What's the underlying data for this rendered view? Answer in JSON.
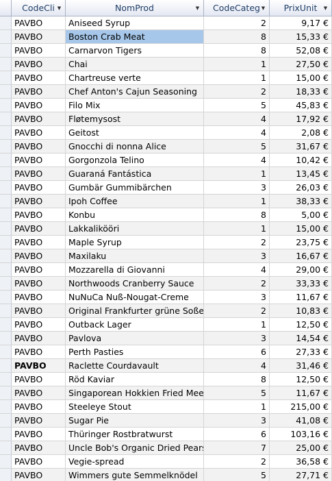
{
  "columns": [
    "CodeCli",
    "NomProd",
    "CodeCateg",
    "PrixUnit"
  ],
  "dropdown_icon": "chevron-down-icon",
  "selected_row_index": 1,
  "rows": [
    {
      "codecli": "PAVBO",
      "nomprod": "Aniseed Syrup",
      "codecateg": "2",
      "prixunit": "9,17 €"
    },
    {
      "codecli": "PAVBO",
      "nomprod": "Boston Crab Meat",
      "codecateg": "8",
      "prixunit": "15,33 €"
    },
    {
      "codecli": "PAVBO",
      "nomprod": "Carnarvon Tigers",
      "codecateg": "8",
      "prixunit": "52,08 €"
    },
    {
      "codecli": "PAVBO",
      "nomprod": "Chai",
      "codecateg": "1",
      "prixunit": "27,50 €"
    },
    {
      "codecli": "PAVBO",
      "nomprod": "Chartreuse verte",
      "codecateg": "1",
      "prixunit": "15,00 €"
    },
    {
      "codecli": "PAVBO",
      "nomprod": "Chef Anton's Cajun Seasoning",
      "codecateg": "2",
      "prixunit": "18,33 €"
    },
    {
      "codecli": "PAVBO",
      "nomprod": "Filo Mix",
      "codecateg": "5",
      "prixunit": "45,83 €"
    },
    {
      "codecli": "PAVBO",
      "nomprod": "Fløtemysost",
      "codecateg": "4",
      "prixunit": "17,92 €"
    },
    {
      "codecli": "PAVBO",
      "nomprod": "Geitost",
      "codecateg": "4",
      "prixunit": "2,08 €"
    },
    {
      "codecli": "PAVBO",
      "nomprod": "Gnocchi di nonna Alice",
      "codecateg": "5",
      "prixunit": "31,67 €"
    },
    {
      "codecli": "PAVBO",
      "nomprod": "Gorgonzola Telino",
      "codecateg": "4",
      "prixunit": "10,42 €"
    },
    {
      "codecli": "PAVBO",
      "nomprod": "Guaraná Fantástica",
      "codecateg": "1",
      "prixunit": "13,45 €"
    },
    {
      "codecli": "PAVBO",
      "nomprod": "Gumbär Gummibärchen",
      "codecateg": "3",
      "prixunit": "26,03 €"
    },
    {
      "codecli": "PAVBO",
      "nomprod": "Ipoh Coffee",
      "codecateg": "1",
      "prixunit": "38,33 €"
    },
    {
      "codecli": "PAVBO",
      "nomprod": "Konbu",
      "codecateg": "8",
      "prixunit": "5,00 €"
    },
    {
      "codecli": "PAVBO",
      "nomprod": "Lakkalikööri",
      "codecateg": "1",
      "prixunit": "15,00 €"
    },
    {
      "codecli": "PAVBO",
      "nomprod": "Maple Syrup",
      "codecateg": "2",
      "prixunit": "23,75 €"
    },
    {
      "codecli": "PAVBO",
      "nomprod": "Maxilaku",
      "codecateg": "3",
      "prixunit": "16,67 €"
    },
    {
      "codecli": "PAVBO",
      "nomprod": "Mozzarella di Giovanni",
      "codecateg": "4",
      "prixunit": "29,00 €"
    },
    {
      "codecli": "PAVBO",
      "nomprod": "Northwoods Cranberry Sauce",
      "codecateg": "2",
      "prixunit": "33,33 €"
    },
    {
      "codecli": "PAVBO",
      "nomprod": "NuNuCa Nuß-Nougat-Creme",
      "codecateg": "3",
      "prixunit": "11,67 €"
    },
    {
      "codecli": "PAVBO",
      "nomprod": "Original Frankfurter grüne Soße",
      "codecateg": "2",
      "prixunit": "10,83 €"
    },
    {
      "codecli": "PAVBO",
      "nomprod": "Outback Lager",
      "codecateg": "1",
      "prixunit": "12,50 €"
    },
    {
      "codecli": "PAVBO",
      "nomprod": "Pavlova",
      "codecateg": "3",
      "prixunit": "14,54 €"
    },
    {
      "codecli": "PAVBO",
      "nomprod": "Perth Pasties",
      "codecateg": "6",
      "prixunit": "27,33 €"
    },
    {
      "codecli": "PAVBO",
      "nomprod": "Raclette Courdavault",
      "codecateg": "4",
      "prixunit": "31,46 €"
    },
    {
      "codecli": "PAVBO",
      "nomprod": "Röd Kaviar",
      "codecateg": "8",
      "prixunit": "12,50 €"
    },
    {
      "codecli": "PAVBO",
      "nomprod": "Singaporean Hokkien Fried Mee",
      "codecateg": "5",
      "prixunit": "11,67 €"
    },
    {
      "codecli": "PAVBO",
      "nomprod": "Steeleye Stout",
      "codecateg": "1",
      "prixunit": "215,00 €"
    },
    {
      "codecli": "PAVBO",
      "nomprod": "Sugar Pie",
      "codecateg": "3",
      "prixunit": "41,08 €"
    },
    {
      "codecli": "PAVBO",
      "nomprod": "Thüringer Rostbratwurst",
      "codecateg": "6",
      "prixunit": "103,16 €"
    },
    {
      "codecli": "PAVBO",
      "nomprod": "Uncle Bob's Organic Dried Pears",
      "codecateg": "7",
      "prixunit": "25,00 €"
    },
    {
      "codecli": "PAVBO",
      "nomprod": "Vegie-spread",
      "codecateg": "2",
      "prixunit": "36,58 €"
    },
    {
      "codecli": "PAVBO",
      "nomprod": "Wimmers gute Semmelknödel",
      "codecateg": "5",
      "prixunit": "27,71 €"
    }
  ]
}
